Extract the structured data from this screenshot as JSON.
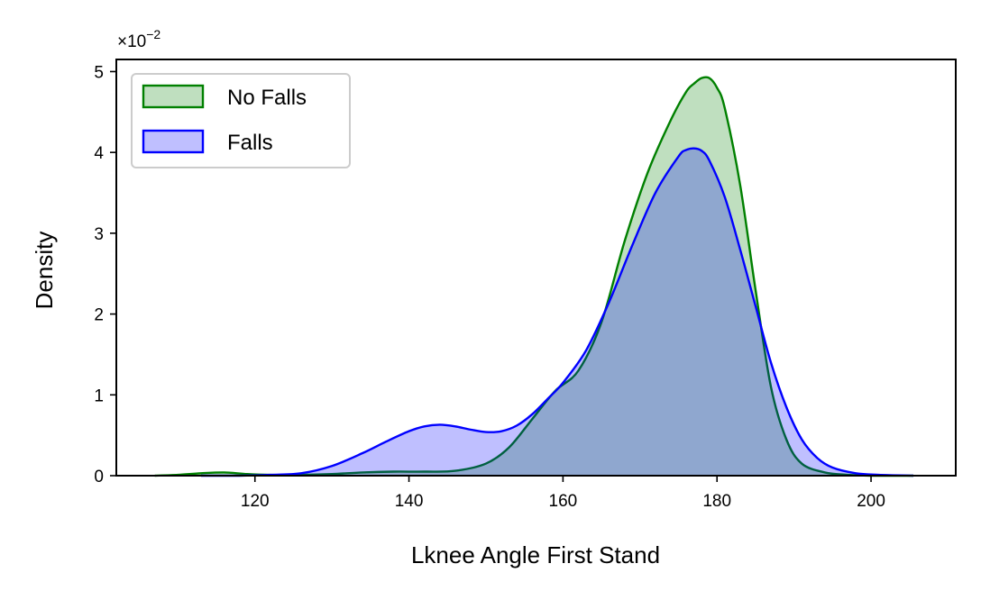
{
  "chart_data": {
    "type": "area",
    "title": "",
    "xlabel": "Lknee Angle First Stand",
    "ylabel": "Density",
    "y_offset_label": "×10",
    "y_offset_exponent": "−2",
    "xlim": [
      102,
      211
    ],
    "ylim": [
      0,
      5.15
    ],
    "xticks": [
      120,
      140,
      160,
      180,
      200
    ],
    "xtick_labels": [
      "120",
      "140",
      "160",
      "180",
      "200"
    ],
    "yticks": [
      0,
      1,
      2,
      3,
      4,
      5
    ],
    "ytick_labels": [
      "0",
      "1",
      "2",
      "3",
      "4",
      "5"
    ],
    "grid": false,
    "legend": "top-left",
    "series": [
      {
        "name": "No Falls",
        "color": "#008000",
        "fill": "#008000",
        "x": [
          107,
          110,
          113,
          116,
          119,
          122,
          126,
          130,
          134,
          138,
          142,
          146,
          150,
          153,
          156,
          159,
          162,
          165,
          168,
          171,
          174,
          176,
          177,
          178,
          179,
          180,
          181,
          183,
          185,
          187,
          189,
          191,
          194,
          197,
          200,
          203,
          205.5
        ],
        "values": [
          0.0,
          0.01,
          0.03,
          0.04,
          0.02,
          0.01,
          0.01,
          0.02,
          0.04,
          0.05,
          0.05,
          0.06,
          0.15,
          0.35,
          0.7,
          1.05,
          1.3,
          1.9,
          2.9,
          3.75,
          4.4,
          4.75,
          4.85,
          4.92,
          4.92,
          4.8,
          4.55,
          3.6,
          2.3,
          1.1,
          0.45,
          0.15,
          0.04,
          0.01,
          0.0,
          0.0,
          0.0
        ]
      },
      {
        "name": "Falls",
        "color": "#0000ff",
        "fill": "#0000ff",
        "x": [
          113,
          118,
          122,
          126,
          130,
          134,
          137,
          140,
          142,
          144,
          146,
          148,
          150,
          152,
          154,
          156,
          158,
          160,
          163,
          166,
          169,
          172,
          175,
          176,
          177,
          178,
          179,
          181,
          183,
          185,
          187,
          189,
          191,
          193,
          195,
          198,
          201,
          205.5
        ],
        "values": [
          0.0,
          0.0,
          0.01,
          0.03,
          0.12,
          0.28,
          0.42,
          0.55,
          0.61,
          0.63,
          0.61,
          0.57,
          0.54,
          0.55,
          0.62,
          0.76,
          0.95,
          1.15,
          1.55,
          2.15,
          2.85,
          3.5,
          3.95,
          4.03,
          4.05,
          4.02,
          3.9,
          3.45,
          2.8,
          2.1,
          1.4,
          0.85,
          0.45,
          0.22,
          0.1,
          0.03,
          0.01,
          0.0
        ]
      }
    ]
  }
}
